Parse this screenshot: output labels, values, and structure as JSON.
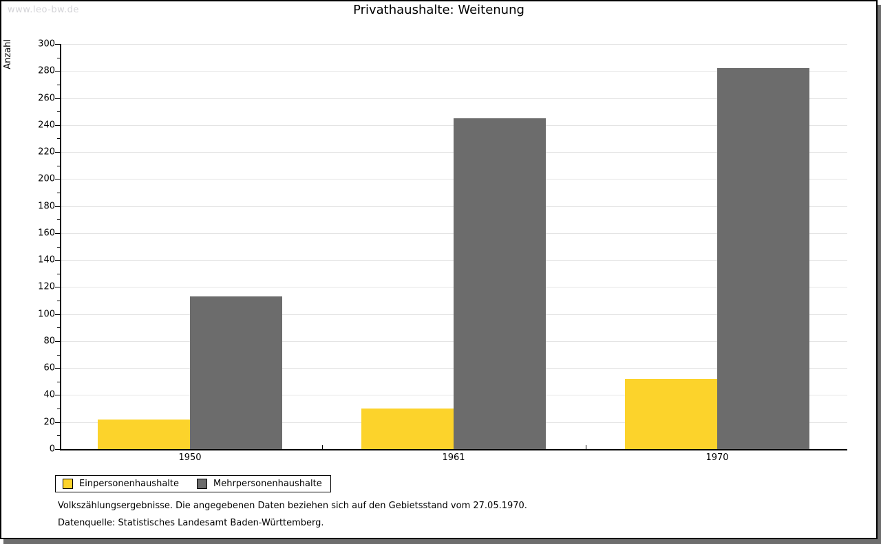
{
  "watermark": "www.leo-bw.de",
  "title": "Privathaushalte: Weitenung",
  "chart_data": {
    "type": "bar",
    "title": "Privathaushalte: Weitenung",
    "categories": [
      "1950",
      "1961",
      "1970"
    ],
    "series": [
      {
        "name": "Einpersonenhaushalte",
        "color": "#FCD32B",
        "values": [
          22,
          30,
          52
        ]
      },
      {
        "name": "Mehrpersonenhaushalte",
        "color": "#6C6C6C",
        "values": [
          113,
          245,
          282
        ]
      }
    ],
    "xlabel": "",
    "ylabel": "Anzahl",
    "ylim": [
      0,
      300
    ],
    "ytick_step": 20,
    "yminor_step": 10,
    "ytick_labels": [
      "0",
      "20",
      "40",
      "60",
      "80",
      "100",
      "120",
      "140",
      "160",
      "180",
      "200",
      "220",
      "240",
      "260",
      "280",
      "300"
    ],
    "grid": true,
    "legend_position": "bottom-left"
  },
  "footer": {
    "line1": "Volkszählungsergebnisse. Die angegebenen Daten beziehen sich auf den Gebietsstand vom 27.05.1970.",
    "line2": "Datenquelle: Statistisches Landesamt Baden-Württemberg."
  },
  "colors": {
    "series1": "#FCD32B",
    "series2": "#6C6C6C",
    "gridline": "#E4E4E4",
    "frame_border": "#000000",
    "frame_shadow": "#6E6E6E",
    "watermark": "#D4D4D8"
  }
}
